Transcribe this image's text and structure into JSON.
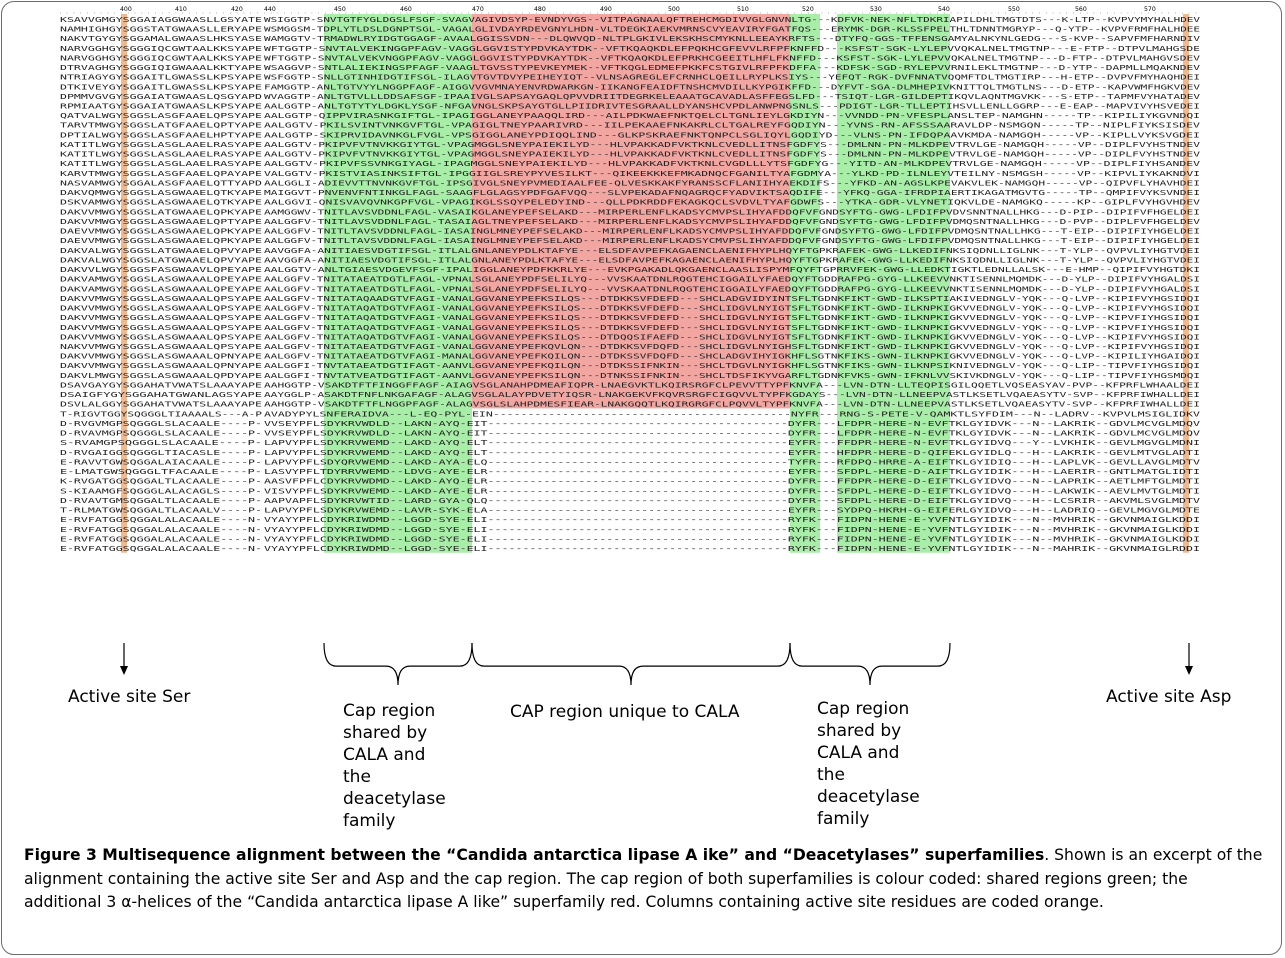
{
  "figure": {
    "ruler": [
      "400",
      "410",
      "420",
      "440",
      "450",
      "460",
      "470",
      "480",
      "490",
      "500",
      "510",
      "520",
      "530",
      "540",
      "550",
      "560",
      "570"
    ],
    "sequences": [
      "KSAVVGMGYSGGAIAGGWAASLLGSYATE:WSIGGTP-SNVTGTFYGLDGSLFSGF-SVAGVAGIVDSYP-EVNDYVGS--VITPAGNAALQFTREHCMGDIVVGLGNVNLTG---KDFVK-NEK-NFLTDKRIAPILDHLTMGTDTS---K-LTP--KVPVYMYHALHDEV",
      "NAMHIGHGYSGGSTATGWAASLLERYAPE:WSMGGSM-TDPLYTLDSLDGNPTSGL-VAGALGLIVDAYRDEVGNYLHDN-VLTDEGKIAEKVMRNSCVYEAVIRYFGATFQS---ERYMK-DGR-KLSSFPELTHLTDNNTMGRYP---Q-YTP--KVPVFRMFHALHDEE",
      "NAKVTGYGYSGGAMALGWAASLHKSYASE:WAMGGTV-TRMADWLRYIDGTGGAGF-AVAALGGISSVDN---DLQWVQD-NLTPLGKIVLEKSKHSCMYKNLLEEAYKRFTS---DTYFQ-GGS-TFFENSGAMYALNKYNLGEDG---S-KVP--SAPVFMFHARNDIV",
      "NARVGGHGYSGGGIQCGWTAALKKSYAPE:WFTGGTP-SNVTALVEKINGGPFAGV-VAGGLGGVISTYPDVKAYTDK--VFTKQAQKDLEFPQKHCGFEVVLRFPFKNFFD---KSFST-SGK-LYLEPVVQKALNELTMGTNP---E-FTP--DTPVLMAHGSDE",
      "NARVGGHGYSGGGIQCGWTAALKKSYAPE:WFTGGTP-SNVTALVEKVNGGPFAGV-VAGGLGGVISTYPDVKAYTDK--VFTKQAQKDLEFPRKHCGEEITLHFLFKNFFD---KSFST-SGK-LYLEPVVQKALNELTMGTNP---D-FTP--DTPVLMAHGVSDEV",
      "DTRVAGHGYSGGGIQIGWAAALKKTYAPE:WSAGGVP-SNTLALIEKINGSPFAGF-VAAGLTGVSSTYPEVKEYMEK--VFTKQGLEDMEFPKKFCSTGIVLRFPFKDFFA---KDFSK-SGD-RYLEPVVRNILEKLTMGTNP---D-YTP--DAPMLLMQAKNDEV",
      "NTRIAGYGYSGGAITLGWASSLKPSYAPE:WSFGGTP-SNLLGTINHIDGTIFSGL-ILAGVTGVTDVYPEIHEYIQT--VLNSAGREGLEFCRNHCLQEILLRYPLKSIYS---YEFQT-RGK-DVFNNATVQQMFTDLTMGTIRP---H-ETP--DVPVFMYHAQHDEI",
      "DTKIVEYGYSGGAITLGWASSLKPSYAPE:FAMGGTP-ANLTGTVYYLNGGPFAGF-AIGGVVGVMNAYENVRDWARKGN-IIKANGFEAIDFTNSHCMVDILLKYPGIKFFD---DYFVT-SGA-DLMHEPIVKNITTQLTMGTLNS---D-ETP--KAPVWMFHGKVDEV",
      "DPMMVGVGYSGGAIATGWAASLQSGYAPD:WVAGGTP-ANLTGTVLLLDDSAFSGF-IPAAIVGLSAPSAYGAQLQPVVDRIITDEGRKELEAAATGCAVADLASFFEGSLFD---TSIQT-LGR-GILDEPTIKQVLAQNTMGVKK---S-ETP--TAPMFVYHATADEV",
      "RPMIAATGYSGGAIATGWAASLKPSYAPE:AALGGTP-ANLTGTYTYLDGKLYSGF-NFGAVNGLSKPSAYGTGLLPIIDRIVTESGRAALLDYANSHCVPDLANWPNGSNLS---PDIGT-LGR-TLLEPTIHSVLLENLLGGRP---E-EAP--MAPVIVYHSVEDEI",
      "QATVALWGYSGGSLASGFAAELQPSYAPE:AALGGTP-QIPPVIRASNKGIFTGL-IPAGIGGLANEYPAAQQLIRD---AILPDKWAEFNKTQELCLTGNLIEYLGKDIYN---VVNDD-PN-VFESPLANSLTEP-NAMGHN-----TP--KIPILIYKGVNDQI",
      "TARVTMWGYSGGSLATGFAAELQPTYAPE:AALGGTV-PKILSVINTVNKGVFTGL-VPAGIGLTNEYPAARIVRD---IILPEKAAEFNKAKRLCLTGALREYFGQDIYN---YVNS-RN-AFSSSAARAVLDP-NSMGQN-----TP--NIPLFIYKSISDEV",
      "DPTIALWGYSGGSLASGFAAELHPTYAPE:AALGGTP-SKIPRVIDAVNKGLFVGL-VPSGIGGLANEYPDIQQLIND---GLKPSKRAEFNKTQNPCLSGLIQYLGQDIYD---VLNS-PN-IFDQPAAVKMDA-NAMGQH-----VP--KIPLLVYKSVGDEI",
      "KATITLWGYSGGSLASGLAAELRASYAPE:AALGGTV-PKIPVFVTNVKKGIYTGL-VPAGMGGLSNEYPAIEKILYD---HLVPAKKADFVKTKNLCVEDLLITNSFGDFYS---DMLNN-PN-MLKDPEVTRVLGE-NAMGQH-----VP--DIPLFVYHSTNDEV",
      "KATITLWGYSGGSLASGLAAELRASYAPE:AALGGTV-PKIPVFVTNVKKGIYTGL-VPAGMGGLSNEYPAIEKILYD---HLVPAKKADFVKTKNLCVEDLLITNSFGDFYS---DMLNN-PN-MLKDPEVTRVLGE-NAMGQH-----VP--DIPLFVYHSTNDEV",
      "KATITLWGYSGGSLASGLAAELRASYAPE:AALGGTV-PKIPVFSSVNKGIYAGL-IPAGMGGLSNEYPAIEKILYD---HLVPAKKADFVKTKNLCVGDLLLYTSFGDFYG---YITD-AN-MLKDPEVTRVLGE-NAMGQH-----VP--DIPLFIYHSANDEV",
      "KARVTMWGYSGGSLASGFAAELQPAYAPE:VALGGTV-PKISTVIASINKSIFTGL-IPGGIIGLSREYPYVESILKT---QIKEEKKKEFMKADNQCFGANILTYAFGDMYA---YLKD-PD-ILNLEYVTEILNY-NSMGSH-----VP--KIPVLIYKAKNDVI",
      "NASVAMWGYSGGALASGFAAELQTTYAPD:AALGGLI-ADIEVVTTNVNKGVFTGL-IPSGIVGLSNEYPVMEDIAALFEE-QLVESKKAKFYRANSSCFLANIIHYAEKDIFS---YFKD-AN-AGSLKPEVAKVLEK-NAMGQH-----VP--QIPVFLYHAVHDEI",
      "DAKVQMWGYSGGSLASGWAAELQTKYAPE:MAIGGVT-PNVENVFNTINKGLFAGL-SAAGFLGLAGSYPDFGAFVQQ---SLVPEKADAFNQAGRQCFYADVIKTSAQDIFE---YFKQ-GGA-IFRDPIAERTIKAGATMGVTG-----TP--QMPIFVYKSVNDEI",
      "DSKVAMWGYSGGSLASGWAAELQTKYAPE:AALGGVI-QNISVAVQVNKGPFVGL-VPAGIKGLSSQYPELEDYIND---QLLPDKRDDFEKAGKQCLSVDVLTYAFGDWFS---YTKA-GDR-VLYNETIQKVLDE-NAMGKQ-----KP--GIPLFVYHGVHDEV",
      "DAKVVMWGYSGGSLATGWAAELQPKYAPE:AAMGGWV-TNITLAVSVDDNLFAGL-VASAIKGLANEYPEFSELAKD---MIRPERLENFLKADSYCMVPSLIHYAFDDQFVFGNDSYFTG-GWG-LFDIFPVDVSNNTNALLHKG---D-PIP--DIPIFVFHGELDEI",
      "DAKVVMWGYSGGSLASGWAAELQPTYAPE:AALGGFV-TNITLAVSVDDNLFAGL-TASAIAGLTNEYPEFSELAKD---MIRPERLENFLKADSYCMVPSLIHYAFDDQFVFGNDSYFTG-GWG-LFDIFPVDMQSNTNALLHKG---D-PVP--DIPLFVFHGELDEV",
      "DAEVVMWGYSGGSLASGWAAELQPKYAPE:AALGGFV-TNITLTAVSVDDNLFAGL-IASAINGLMNEYPEFSELAKD---MIRPERLENFLKADSYCMVPSLIHYAFDDQFVFGNDSYFTG-GWG-LFDIFPVDMQSNTNALLHKG---T-EIP--DIPIFIYHGELDEI",
      "DAEVVMWGYSGGSLASGWAAELQPKYAPE:AALGGFV-TNITLTAVSVDDNLFAGL-IASAINGLMNEYPEFSELAKD---MIRPERLENFLKADSYCMVPSLIHYAFDDQFVFGNDSYFTG-GWG-LFDIFPVDMQSNTNALLHKG---T-EIP--DIPIFIYHGELDEI",
      "DAKVALWGYSGGSLATGWAAELQPVYAPE:AAVGGFA-ANITIAESVDGTIFSGL-ITLALGNLANEYPDLKTAFYE---ELSDFAVPEFKAGAENCLAENIFHYPLHQYFTGPKRAFEK-GWG-LLKEDIFNKSIQDNLLIGLNK---T-YLP--QVPVLIYHGTVDEI",
      "DAKVALWGYSGGSLATGWAAELQPVYAPE:AAVGGFA-ANITIAESVDGTIFSGL-ITLALGNLANEYPDLKTAFYE---ELSDFAVPEFKAGAENCLAENIFHYPLHQYFTGPKRAFEK-GWG-LLKEDIFNKSIQDNLLIGLNK---T-YLP--QVPVLIYHGTVDEI",
      "DAKVVLWGYSGGSFASGWAAVLQPEYAPE:AALGGTV-ANLTGIAESVDGEVFSGF-IPALIGGLANEYPDFKKRLYE---EVKPGAKADLQKGAENCLAASLISPYMFQYFTGPRRVFEK-GWG-LLEDKTIGKTLEDNLLALSK---E-HMP--QIPIFVYHGTDKI",
      "DAKVAMWGYSGGSLASGWAAALQPEYAPE:AALGGFV-TNITATAEATDGTLFAGL-VPNALSGLANEYPDFSELILYQ---VVSKAATDNLRQGTEHCIGGAILYFAEDQYFTGDDRAFPG-GYG-LLKEEVVNKTISENNLMQMDK---D-YLP--DIPIFVYHGALDSI",
      "DAKVAMWGYSGGSLASGWAAALQPEYAPE:AALGGFV-TNITATAEATDGTLFAGL-VPNALSGLANEYPDFSELILYQ---VVSKAATDNLRQGTEHCIGGAILYFAEDQYFTGDDRAFPG-GYG-LLKEEVVNKTISENNLMQMDK---D-YLP--DIPIFVYHGALDSI",
      "DAKVVMWGYSGGSLASGWAAALQPSYAPE:AALGGFV-TNITATAQAADGTVFAGI-VANALGGVANEYPEFKSILQS---DTDKKSVFDEFD---SHCLADGVIDYINTSFLTGDNKFIKT-GWD-ILKSPTIAKIVEDNGLV-YQK---Q-LVP--KIPIFVYHGSIDQI",
      "DAKVVMWGYSGGSLASGWAAALQPSYAPE:AALGGFV-TNITATAQATDGTVFAGI-VANALGGVANEYPEFKSILQS---DTDKKSVFDEFD---SHCLIDGVLNYIGTSFLTGDNKFIKT-GWD-ILKNPKIGKVVEDNGLV-YQK---Q-LVP--KIPIFVYHGSIDQI",
      "DAKVVMWGYSGGSLASGWAAALQPSYAPE:AALGGFV-TNITATAQATDGTVFAGI-VANALGGVANEYPEFKSILQS---DTDKKSVFDEFD---SHCLIDGVLNYIGTSFLTGDNKFIKT-GWD-ILKNPKIGKVVEDNGLV-YQK---Q-LVP--KIPVFIYHGSIDQI",
      "DAKVVMWGYSGGSLASGWAAALQPSYAPE:AALGGFV-TNITATAQATDGTVFAGI-VANALGGVANEYPEFKSILQS---DTDKKSVFDEFD---SHCLIDGVLNYIGTSFLTGDNKFIKT-GWD-ILKNPKIGKVVEDNGLV-YQK---Q-LVP--KIPVFIYHGSIDQI",
      "DAKVVMWGYSGGSLASGWAAALQPSYAPE:AALGGFV-TNITATAQATDGTVFAGI-VANALGGVANEYPEFKSILQS---DTDQQSIFAEFD---SHCLIDGVLNYIGTSFLTGDNKFIKT-GWD-ILKNPKIGKVVEDNGLV-YQK---Q-LVP--KIPIFVYHGSIDQI",
      "NAKVVMWGYSGGSLASGWAAALQPSYAPE:AALGGFV-TNITATAEATDGTVFAGI-VANALGGVANEYPEFKQVLQN---DTDKKSVFDQFD---SHCLIDGVLNYIGHSFLTGDNKFIKT-GWD-ILKNPKIGKVVEDNGLV-YQK---Q-LVP--KIPIFVYHGSIDQI",
      "DAKVVMWGYSGGSLASGWAAALQPNYAPE:AALGGFV-TNITATAEATDGTVFAGI-MANALGGVANEYPEFKQILQN---DTDKSSVFDQFD---SHCLADGVIHYIGKHFLSGTNKFIKS-GWN-ILKNPKIGKVVEDNGLV-YQK---Q-LVP--KIPILIYHGAIDQI",
      "DAKVVMWGYSGGSLASGWAAALQPNYAPE:AALGGFI-TNVTATAEATDGTIFAGT-AANVLGGVANEYPEFKQILQN---DTDKSSIFNKIN---SHCLTDGVLNYIGKHFLSGTNKFIKS-GWN-ILKNPSIKNIVEDNGLV-YQK---Q-LIP--TIPVFIYHGSIDQI",
      "DAKVLMWGYSGGSLASGWAAALQPDYAPE:AALGGFI-TNVTATVEATDGTIFAGT-AANVLGGVANEYPEFKSILQN---DTNKSSIFNKIN---SHCLTDSFIKYVGARFLTGDNKFVKS-GWN-IFKNLVVSKIVKDNGLV-YQK---Q-LIP--TIPVFIYHGSMDQI",
      "DSAVGAYGYSGGAHATVWATSLAAAYAPE:AAHGGTP-VSAKDTFTFINGGFFAGF-AIAGVSGLANAHPDMEAFIQPR-LNAEGVKTLKQIRSRGFCLPEVVTTYPFKNVFA---LVN-DTN-LLTEQPISGILQQETLVQSEASYAV-PVP--KFPRFLWHAALDEI",
      "DSAIGFYGYSGGAHATGWANLAGSYAPE:AAYGGLP-ASAKDTFNFLNKGAFAGF-ALAGVSGLALAYPDVETYIQSR-LNAKGEKVFKQVRSRGFCIGQVVLTYPFKGDAYS---LVN-DTN-LLNEEPVASTLKSETLVQAEASYTV-SVP--KFPRFIWHALLDEI",
      "DSVLALGGYSGGAHATVWATSLAAAYAPE:AAHGGTP-VSAKDTFTFLNGGPFAGF-ALAGVSGLSLAHPDMESFIEAR-LNAKGQQTLKQIRGRGFCLPQVVLTYPFKNVFA---LVN-DTN-LLNEEPVASTLKSETLVQAEASYTV-SVP--KFPRFIWHALLDEI",
      "T-RIGVTGGYSQGGGLTIAAAALS---A-P:AVADYPYLSNFERAIDVA---L-EQ-PYL-EIN-------------------------------------------NYFR---RNG-S-PETE-V-QAMKTLSYFDIM---N--LADRV--KVPVLMSIGLIDKV",
      "D-RVGVMGPSQGGGLSLACAALE----P-:VVSEYPFLSDYKRVWDLD--LAKN-AYQ-EIT-------------------------------------------DYFR---LFDPR-HERE-N-EVFTKLGYIDVK---N--LAKRIK--GDVLMCVGLMDQV",
      "D-RVAVMGPSQGGGLSLACAALE----P-:VVSEYPFLSDYKRVWDLD--LAKN-AYQ-EIT-------------------------------------------DYFR---LFDPR-HERE-N-EVFTKLGYIDVK---N--LAKRIK--GDVLMCVGLMDQV",
      "S-RVAMGPSQGGGLSLACAALE----P-:LAPVYPFLSDYKRVWEMD--LAKD-AYQ-ELT-------------------------------------------EYFR---FFDPR-HERE-N-EVFTKLGYIDVQ---Y--LVKHIK--GEVLMGVGLMDNI",
      "D-RVGAIGGSQGGGLTIACASLE----P-:LAPVYPFLSDYKRVWEMD--LAKD-AYQ-ELT-------------------------------------------EYFR---HFDPR-HERE-D-QIFEKLGYIDLQ---H--LAKRIK--GEVLMTVGLADTI",
      "E-RAVVTGWSQGGALAIACAALE----P-:LAPVYPFLSDYQRVWEMD--LAKD-AYA-ELQ-------------------------------------------TYFR---RFDPQ-HRRE-A-EIFTKLGYIDIQ---H--LAPLVK--GEVLLAVGLMDTV",
      "E-LMATGWSQGGGLTFACAALE----P-:LASVYPFLTDYRRVWEMD--LDVG-AYE-ELR-------------------------------------------EYFR---SFDPL-HERE-D-AIFTKLGYIDIK---H--LAERIR--GNTLMATGLIDTI",
      "K-RVGATGGSQGGALTLACAALE----P-:AASVFPFLCDYKRVWDMD--LAKD-AYQ-ELR-------------------------------------------DYFR---FFDPR-HERE-D-EIFTKLGYIDVQ---N--LAPRIK--AETLMFTGLMDTI",
      "S-KIAAMGFSQGGGLALACAGLS----P-:VISVYPFLSDYKRVWEMD--LAKD-AYE-ELR-------------------------------------------DYFR---SFDPL-HERE-D-EIFTKLGYIDVQ---H--LAKWIK--AEVLMVTGLMDTI",
      "D-RVAVTGMSQGGALTLACAALE----P-:AAPVAPFLSDYKRVWTID--LARD-GYA-QLQ-------------------------------------------DYFR---SFDPL-HERE-D-EIFTKLGYIDVQ---H--LCSRIR--AKVMLSVGLMDTV",
      "T-RLMATGWSQGGALTLACAALV----P-:LAPVYPFLSDYKRVWEMD--LAVR-SYK-ELA-------------------------------------------EYFR---SYDPQ-HKRH-G-EIFERLGYIDVQ---H--LADRIQ--GEVLMGVGLMDTE",
      "E-RVFATGGSQGGALALACAALE----N-:VYAYYPFLCDYKRIWDMD--LGGD-SYE-ELI-------------------------------------------RYFK---FIDPN-HENE-E-YVFNTLGYIDIK---N--MVHRIK--GKVNMAIGLKDDI",
      "E-RVFATGGSQGGALALACAALE----N-:VYAYYPFLCDYKRIWDMD--LGGD-SYE-ELI-------------------------------------------RYFK---FIDPN-HENE-E-YVFNTLGYIDIK---N--MVHRIK--GKVNMAIGLKDDI",
      "E-RVFATGGSQGGALALACAALE----N-:VYAYYPFLCDYKRIWDMD--LGGD-SYE-ELI-------------------------------------------RYFK---FIDPN-HENE-E-YVFNTLGYIDIK---N--MVHRIK--GKVNMAIGLKDDI",
      "E-RVFATGGSQGGALALACAALE----N-:VYAYYPFLCDYKRIWDMD--LGGD-SYE-ELI-------------------------------------------RYFK---FIDPN-HENE-E-YVFNTLGYIDIK---N--MAHRIK--GKVNMAIGLRDDI"
    ],
    "labels": {
      "active_site_ser": "Active site Ser",
      "active_site_asp": "Active site Asp",
      "cap_shared_left": "Cap region\nshared by\nCALA and\nthe\ndeacetylase\nfamily",
      "cap_unique": "CAP region unique to CALA",
      "cap_shared_right": "Cap region\nshared by\nCALA and\nthe\ndeacetylase\nfamily"
    },
    "colors": {
      "shared_cap": "#a8eea8",
      "unique_cap": "#f2a6a2",
      "active_site": "#f2b98f"
    },
    "caption": {
      "label": "Figure 3 Multisequence alignment between the “Candida antarctica lipase A ike” and “Deacetylases” superfamilies",
      "text": ". Shown is an excerpt of the alignment containing the active site Ser and Asp and the cap region. The cap region of both superfamilies is colour coded: shared regions green; the additional 3 α-helices of the “Candida antarctica lipase A like” superfamily red. Columns containing active site residues are coded orange."
    }
  }
}
